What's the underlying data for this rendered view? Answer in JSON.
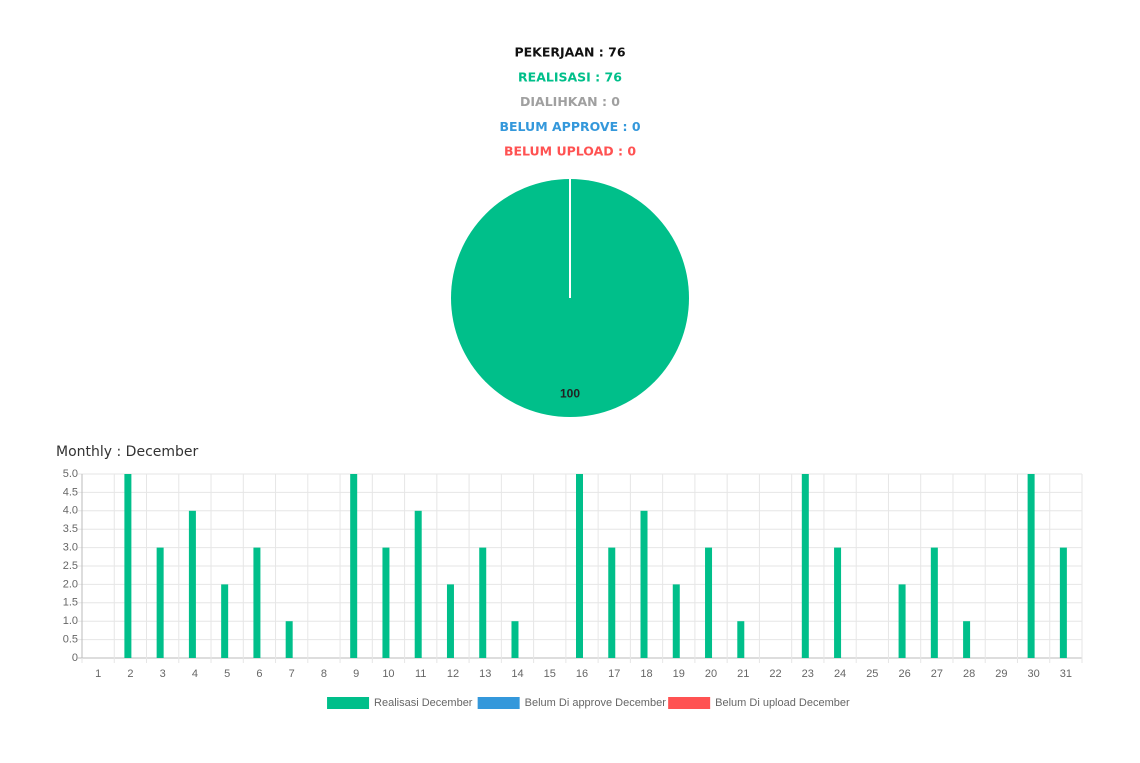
{
  "chart_data": [
    {
      "type": "pie",
      "summary": [
        {
          "text": "PEKERJAAN : 76",
          "color": "#111111"
        },
        {
          "text": "REALISASI : 76",
          "color": "#00bf8a"
        },
        {
          "text": "DIALIHKAN : 0",
          "color": "#a0a0a0"
        },
        {
          "text": "BELUM APPROVE : 0",
          "color": "#3498db"
        },
        {
          "text": "BELUM UPLOAD : 0",
          "color": "#ff5252"
        }
      ],
      "values": [
        100
      ],
      "colors": [
        "#00bf8a"
      ]
    },
    {
      "type": "bar",
      "title": "Monthly : December",
      "categories": [
        "1",
        "2",
        "3",
        "4",
        "5",
        "6",
        "7",
        "8",
        "9",
        "10",
        "11",
        "12",
        "13",
        "14",
        "15",
        "16",
        "17",
        "18",
        "19",
        "20",
        "21",
        "22",
        "23",
        "24",
        "25",
        "26",
        "27",
        "28",
        "29",
        "30",
        "31"
      ],
      "series": [
        {
          "name": "Realisasi December",
          "color": "#00bf8a",
          "values": [
            0,
            5,
            3,
            4,
            2,
            3,
            1,
            0,
            5,
            3,
            4,
            2,
            3,
            1,
            0,
            5,
            3,
            4,
            2,
            3,
            1,
            0,
            5,
            3,
            0,
            2,
            3,
            1,
            0,
            5,
            3
          ]
        },
        {
          "name": "Belum Di approve December",
          "color": "#3498db",
          "values": [
            0,
            0,
            0,
            0,
            0,
            0,
            0,
            0,
            0,
            0,
            0,
            0,
            0,
            0,
            0,
            0,
            0,
            0,
            0,
            0,
            0,
            0,
            0,
            0,
            0,
            0,
            0,
            0,
            0,
            0,
            0
          ]
        },
        {
          "name": "Belum Di upload December",
          "color": "#ff5252",
          "values": [
            0,
            0,
            0,
            0,
            0,
            0,
            0,
            0,
            0,
            0,
            0,
            0,
            0,
            0,
            0,
            0,
            0,
            0,
            0,
            0,
            0,
            0,
            0,
            0,
            0,
            0,
            0,
            0,
            0,
            0,
            0
          ]
        }
      ],
      "ylim": [
        0,
        5
      ],
      "yticks": [
        0,
        0.5,
        {
          "value": 1,
          "label": "1.0"
        },
        1.5,
        {
          "value": 2,
          "label": "2.0"
        },
        2.5,
        {
          "value": 3,
          "label": "3.0"
        },
        3.5,
        {
          "value": 4,
          "label": "4.0"
        },
        4.5,
        {
          "value": 5,
          "label": "5.0"
        }
      ],
      "grid": true,
      "legend": "bottom"
    }
  ]
}
